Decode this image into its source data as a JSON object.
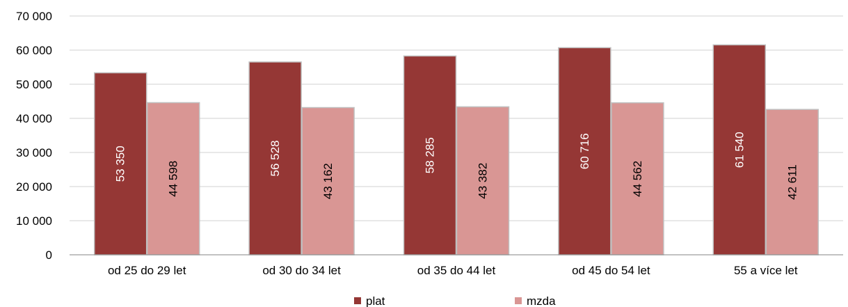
{
  "chart_data": {
    "type": "bar",
    "categories": [
      "od 25 do 29 let",
      "od 30 do 34 let",
      "od 35 do 44 let",
      "od 45 do 54 let",
      "55 a více let"
    ],
    "series": [
      {
        "name": "plat",
        "values": [
          53350,
          56528,
          58285,
          60716,
          61540
        ],
        "labels": [
          "53 350",
          "56 528",
          "58 285",
          "60 716",
          "61 540"
        ],
        "color": "#953735",
        "label_color": "#ffffff"
      },
      {
        "name": "mzda",
        "values": [
          44598,
          43162,
          43382,
          44562,
          42611
        ],
        "labels": [
          "44 598",
          "43 162",
          "43 382",
          "44 562",
          "42 611"
        ],
        "color": "#d99694",
        "label_color": "#000000"
      }
    ],
    "ylim": [
      0,
      70000
    ],
    "yticks": [
      0,
      10000,
      20000,
      30000,
      40000,
      50000,
      60000,
      70000
    ],
    "ytick_labels": [
      "0",
      "10 000",
      "20 000",
      "30 000",
      "40 000",
      "50 000",
      "60 000",
      "70 000"
    ],
    "grid": true,
    "legend": "bottom",
    "data_label_orientation": "vertical"
  }
}
